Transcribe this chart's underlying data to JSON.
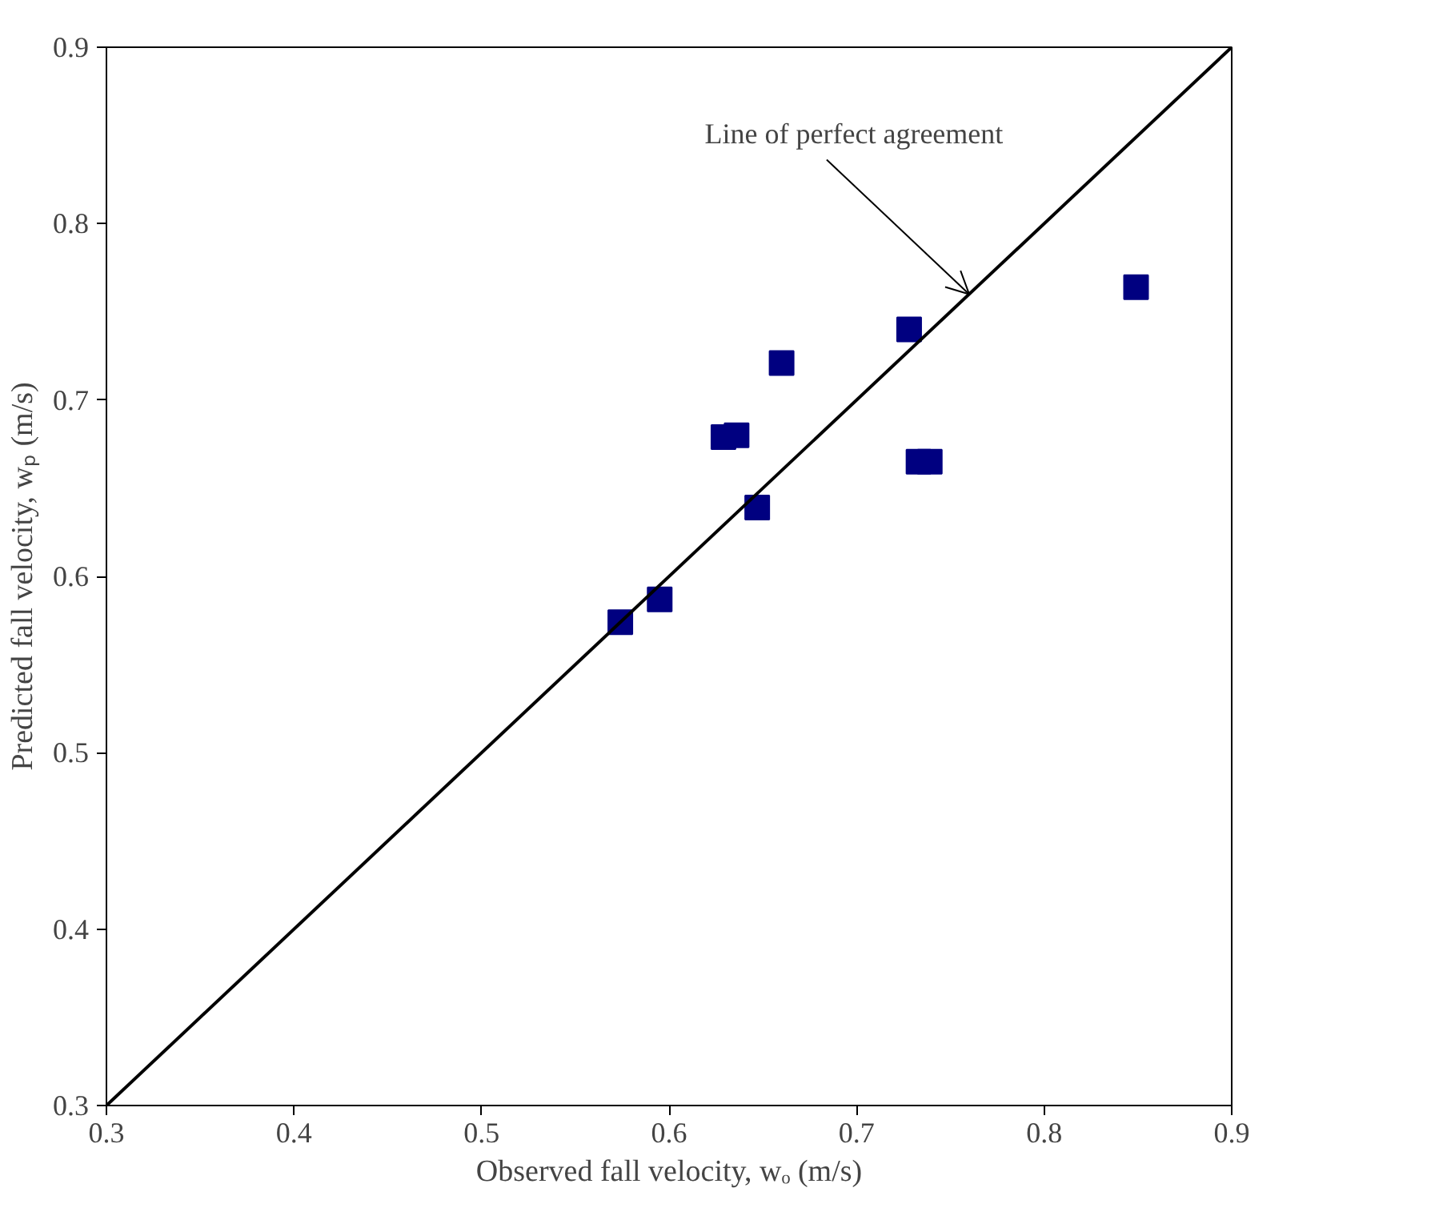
{
  "chart_data": {
    "type": "scatter",
    "xlabel": "Observed fall velocity, wₒ (m/s)",
    "ylabel": "Predicted fall velocity, wₚ (m/s)",
    "xlim": [
      0.3,
      0.9
    ],
    "ylim": [
      0.3,
      0.9
    ],
    "xticks": [
      0.3,
      0.4,
      0.5,
      0.6,
      0.7,
      0.8,
      0.9
    ],
    "yticks": [
      0.3,
      0.4,
      0.5,
      0.6,
      0.7,
      0.8,
      0.9
    ],
    "grid": false,
    "marker": "square",
    "annotations": [
      {
        "text": "Line of perfect agreement",
        "x": 0.76,
        "y": 0.76
      }
    ],
    "series": [
      {
        "color": "#000080",
        "x": [
          0.574,
          0.595,
          0.629,
          0.636,
          0.647,
          0.66,
          0.728,
          0.733,
          0.739,
          0.849
        ],
        "values": [
          0.574,
          0.587,
          0.679,
          0.68,
          0.639,
          0.721,
          0.74,
          0.665,
          0.665,
          0.764
        ]
      },
      {
        "type": "line",
        "color": "#000000",
        "marker": "none",
        "x": [
          0.3,
          0.9
        ],
        "values": [
          0.3,
          0.9
        ]
      }
    ]
  }
}
